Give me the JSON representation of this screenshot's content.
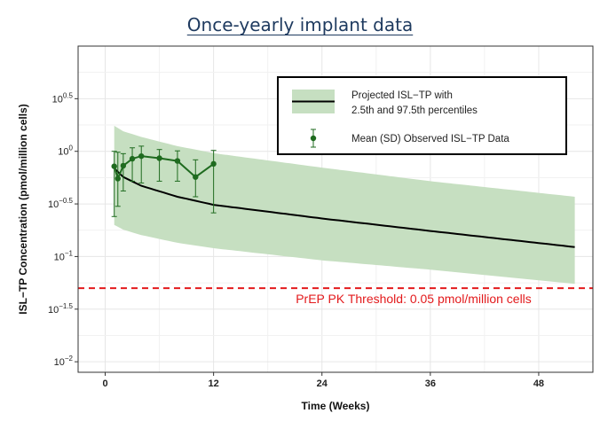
{
  "chart_data": {
    "type": "line",
    "title": "Once-yearly implant data",
    "xlabel": "Time (Weeks)",
    "ylabel": "ISL−TP Concentration (pmol/million cells)",
    "y_scale": "log",
    "xlim": [
      -3,
      54
    ],
    "ylim_log10": [
      -2.1,
      1.0
    ],
    "x_ticks": [
      0,
      12,
      24,
      36,
      48
    ],
    "x_tick_labels": [
      "0",
      "12",
      "24",
      "36",
      "48"
    ],
    "y_ticks_log10": [
      -2,
      -1.5,
      -1,
      -0.5,
      0,
      0.5
    ],
    "y_tick_labels": [
      {
        "base": "10",
        "exp": "−2"
      },
      {
        "base": "10",
        "exp": "−1.5"
      },
      {
        "base": "10",
        "exp": "−1"
      },
      {
        "base": "10",
        "exp": "−0.5"
      },
      {
        "base": "10",
        "exp": "0"
      },
      {
        "base": "10",
        "exp": "0.5"
      }
    ],
    "grid": true,
    "legend_position": "top-right",
    "series": [
      {
        "name": "Projected ISL−TP with 2.5th and 97.5th percentiles",
        "type": "line-with-band",
        "color": "#000000",
        "band_color": "#c6dfc1",
        "x": [
          1,
          2,
          4,
          8,
          12,
          24,
          36,
          52
        ],
        "y": [
          0.69,
          0.57,
          0.47,
          0.37,
          0.31,
          0.23,
          0.175,
          0.123
        ],
        "band_low": [
          0.2,
          0.18,
          0.16,
          0.135,
          0.12,
          0.092,
          0.075,
          0.055
        ],
        "band_high": [
          1.75,
          1.55,
          1.37,
          1.12,
          0.96,
          0.7,
          0.52,
          0.37
        ]
      },
      {
        "name": "Mean (SD) Observed ISL−TP Data",
        "type": "errorbar",
        "color": "#1f6b1f",
        "x": [
          1,
          1.4,
          2,
          3,
          4,
          6,
          8,
          10,
          12
        ],
        "y": [
          0.72,
          0.55,
          0.73,
          0.85,
          0.9,
          0.86,
          0.81,
          0.57,
          0.76
        ],
        "y_low": [
          0.24,
          0.3,
          0.42,
          0.52,
          0.5,
          0.52,
          0.52,
          0.37,
          0.26
        ],
        "y_high": [
          1.0,
          0.98,
          0.95,
          1.08,
          1.12,
          1.04,
          1.01,
          0.83,
          1.02
        ]
      }
    ],
    "reference_line": {
      "y": 0.05,
      "label": "PrEP PK Threshold: 0.05 pmol/million cells",
      "color": "#e31a1c"
    }
  }
}
